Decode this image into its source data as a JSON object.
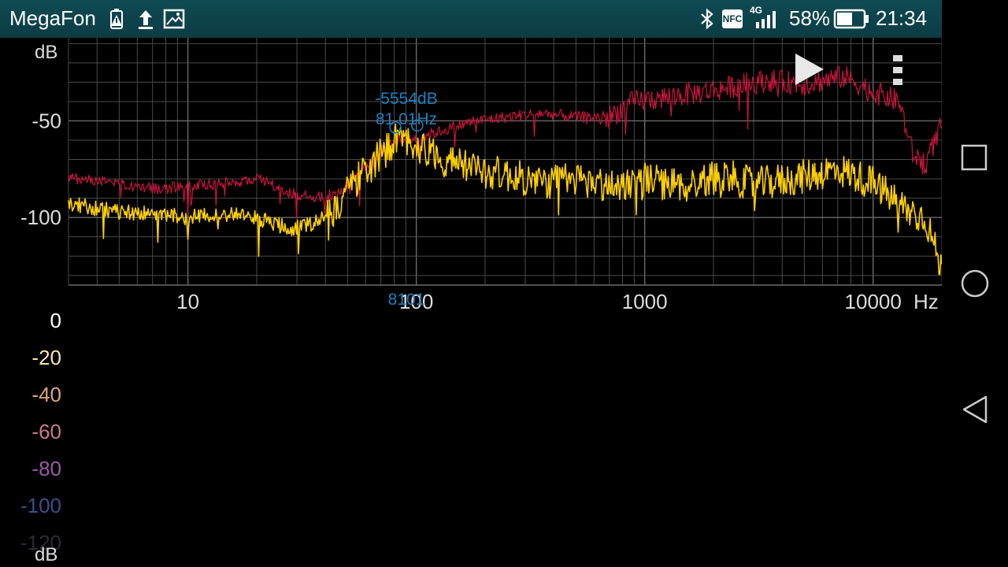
{
  "statusbar": {
    "carrier": "MegaFon",
    "network": "4G",
    "nfc": "NFC",
    "battery_percent": "58%",
    "battery_level": 0.58,
    "time": "21:34"
  },
  "spectrum": {
    "y_unit": "dB",
    "x_unit": "Hz",
    "y_ticks": [
      "-50",
      "-100"
    ],
    "x_ticks": [
      "10",
      "100",
      "1000",
      "10000"
    ],
    "x_range": [
      3,
      20000
    ],
    "y_range": [
      -135,
      -7
    ],
    "colors": {
      "series_a": "#ffd000",
      "series_b": "#c8143c",
      "grid": "#4a4a4a",
      "marker": "#1e7fc0"
    },
    "markers": [
      {
        "dB": "-55dB",
        "freq": "81Hz",
        "axis_label": "81"
      },
      {
        "dB": "-54dB",
        "freq": "101Hz",
        "axis_label": "101"
      }
    ],
    "marker_value_overlay": "-5554dB",
    "marker_freq_overlay": "81 01Hz",
    "marker_axis_overlay": "8101"
  },
  "controls": {
    "play": "play-icon",
    "menu": "overflow-menu-icon"
  },
  "color_scale": {
    "labels": [
      "0",
      "-20",
      "-40",
      "-60",
      "-80",
      "-100",
      "-120"
    ],
    "label_colors": [
      "#ffffff",
      "#f5e6b0",
      "#e0a67f",
      "#c87a8e",
      "#9a5aa8",
      "#3a4f8a",
      "#2a2a36"
    ],
    "unit": "dB"
  },
  "navbar": {
    "recents": "square-icon",
    "home": "circle-icon",
    "back": "triangle-back-icon"
  },
  "chart_data": {
    "type": "line",
    "title": "",
    "xlabel": "Hz",
    "ylabel": "dB",
    "x_scale": "log",
    "xlim": [
      3,
      20000
    ],
    "ylim": [
      -135,
      -7
    ],
    "grid": true,
    "series": [
      {
        "color": "#ffd000",
        "x": [
          3,
          5,
          7,
          10,
          15,
          20,
          28,
          35,
          45,
          55,
          65,
          81,
          101,
          130,
          180,
          250,
          350,
          500,
          700,
          1000,
          1500,
          2200,
          3000,
          4500,
          7000,
          10000,
          14000,
          17000,
          20000
        ],
        "values": [
          -93,
          -97,
          -98,
          -100,
          -98,
          -100,
          -106,
          -103,
          -95,
          -80,
          -72,
          -60,
          -62,
          -70,
          -75,
          -78,
          -82,
          -80,
          -84,
          -80,
          -84,
          -78,
          -83,
          -80,
          -75,
          -82,
          -96,
          -100,
          -128
        ]
      },
      {
        "color": "#c8143c",
        "x": [
          3,
          5,
          7,
          10,
          15,
          20,
          28,
          35,
          45,
          55,
          65,
          81,
          101,
          130,
          180,
          250,
          350,
          500,
          700,
          900,
          1200,
          1800,
          2500,
          3500,
          5000,
          7500,
          10000,
          13000,
          15000,
          17000,
          20000
        ],
        "values": [
          -79,
          -83,
          -85,
          -84,
          -82,
          -80,
          -87,
          -90,
          -88,
          -78,
          -70,
          -60,
          -59,
          -55,
          -50,
          -48,
          -46,
          -48,
          -48,
          -40,
          -38,
          -35,
          -32,
          -29,
          -31,
          -27,
          -35,
          -40,
          -68,
          -72,
          -52
        ]
      }
    ],
    "markers": [
      {
        "x": 81,
        "y": -55
      },
      {
        "x": 101,
        "y": -54
      }
    ]
  }
}
